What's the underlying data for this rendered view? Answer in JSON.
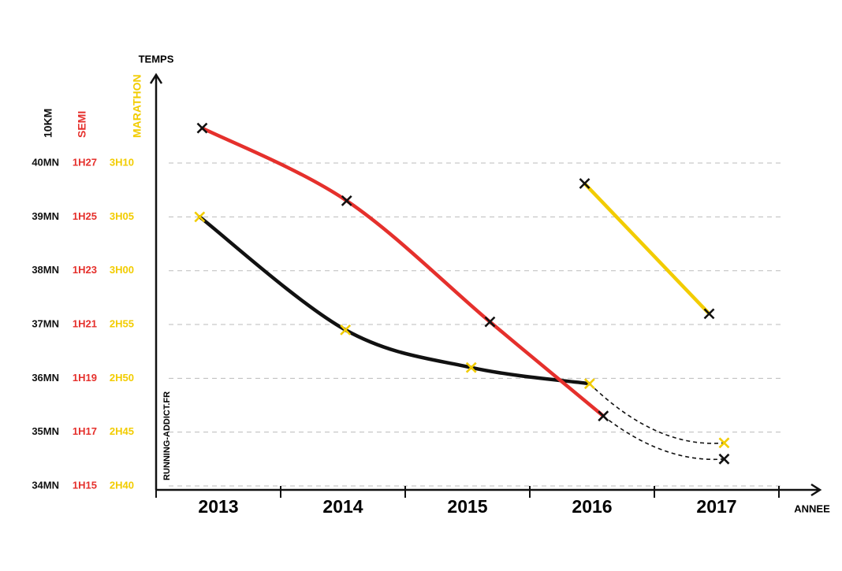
{
  "chart_data": {
    "type": "line",
    "y_title": "TEMPS",
    "x_title": "ANNEE",
    "watermark": "RUNNING-ADDICT.FR",
    "xlim": [
      2013,
      2018.33
    ],
    "xticks": [
      2013,
      2014,
      2015,
      2016,
      2017
    ],
    "ylim": [
      34,
      41.64
    ],
    "yticks": [
      {
        "value": 34,
        "label": "34MN"
      },
      {
        "value": 35,
        "label": "35MN"
      },
      {
        "value": 36,
        "label": "36MN"
      },
      {
        "value": 37,
        "label": "37MN"
      },
      {
        "value": 38,
        "label": "38MN"
      },
      {
        "value": 39,
        "label": "39MN"
      },
      {
        "value": 40,
        "label": "40MN"
      }
    ],
    "y2lim": [
      75,
      90.28
    ],
    "y2ticks": [
      {
        "value": 75,
        "label": "1H15"
      },
      {
        "value": 77,
        "label": "1H17"
      },
      {
        "value": 79,
        "label": "1H19"
      },
      {
        "value": 81,
        "label": "1H21"
      },
      {
        "value": 83,
        "label": "1H23"
      },
      {
        "value": 85,
        "label": "1H25"
      },
      {
        "value": 87,
        "label": "1H27"
      }
    ],
    "y3lim": [
      160,
      198.2
    ],
    "y3ticks": [
      {
        "value": 160,
        "label": "2H40"
      },
      {
        "value": 165,
        "label": "2H45"
      },
      {
        "value": 170,
        "label": "2H50"
      },
      {
        "value": 175,
        "label": "2H55"
      },
      {
        "value": 180,
        "label": "3H00"
      },
      {
        "value": 185,
        "label": "3H05"
      },
      {
        "value": 190,
        "label": "3H10"
      }
    ],
    "grid": true,
    "series": [
      {
        "name": "10KM",
        "color": "#111111",
        "marker_color": "#f2cc00",
        "axis": "y",
        "dashed_last": true,
        "x": [
          2013.35,
          2014.52,
          2015.53,
          2016.48,
          2017.56
        ],
        "values": [
          39.0,
          36.9,
          36.2,
          35.9,
          34.8
        ]
      },
      {
        "name": "SEMI",
        "color": "#e5302c",
        "marker_color": "#111111",
        "axis": "y2",
        "dashed_last": true,
        "x": [
          2013.37,
          2014.53,
          2015.68,
          2016.59,
          2017.56
        ],
        "values": [
          88.3,
          85.6,
          81.1,
          77.6,
          76.0
        ]
      },
      {
        "name": "MARATHON",
        "color": "#f2cc00",
        "marker_color": "#111111",
        "axis": "y3",
        "dashed_last": false,
        "x": [
          2016.44,
          2017.44
        ],
        "values": [
          188.1,
          176.0
        ]
      }
    ]
  }
}
